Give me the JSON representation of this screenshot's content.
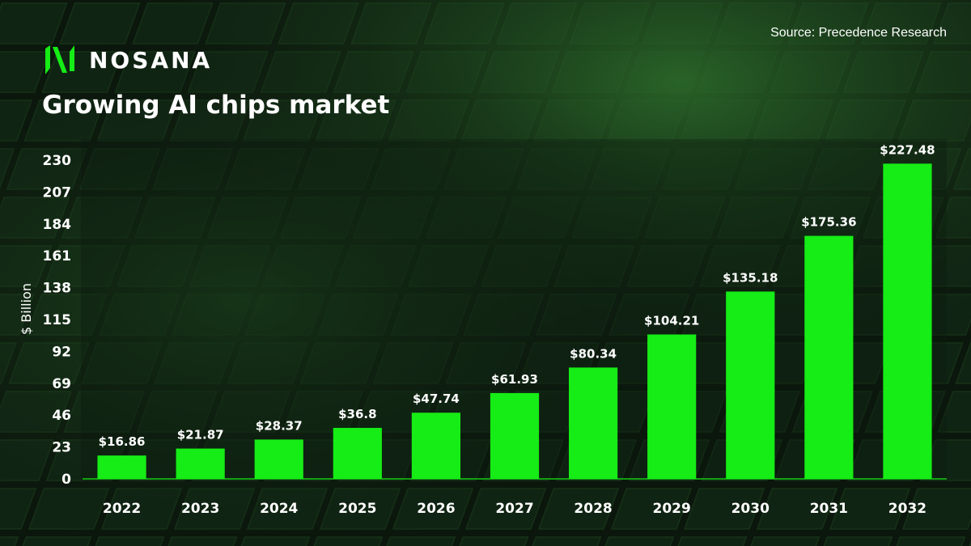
{
  "brand": {
    "name": "NOSANA",
    "logo_icon": "nosana-logo-icon",
    "accent": "#16ec16"
  },
  "header": {
    "title": "Growing AI chips market",
    "source": "Source: Precedence Research"
  },
  "colors": {
    "bar": "#16ec16",
    "axis": "#16ec16",
    "background": "#0d1a0f"
  },
  "chart_data": {
    "type": "bar",
    "title": "Growing AI chips market",
    "xlabel": "",
    "ylabel": "$ Billion",
    "ylim": [
      0,
      230
    ],
    "yticks": [
      "0",
      "23",
      "46",
      "69",
      "92",
      "115",
      "138",
      "161",
      "184",
      "207",
      "230"
    ],
    "categories": [
      "2022",
      "2023",
      "2024",
      "2025",
      "2026",
      "2027",
      "2028",
      "2029",
      "2030",
      "2031",
      "2032"
    ],
    "values": [
      16.86,
      21.87,
      28.37,
      36.8,
      47.74,
      61.93,
      80.34,
      104.21,
      135.18,
      175.36,
      227.48
    ],
    "value_labels": [
      "$16.86",
      "$21.87",
      "$28.37",
      "$36.8",
      "$47.74",
      "$61.93",
      "$80.34",
      "$104.21",
      "$135.18",
      "$175.36",
      "$227.48"
    ],
    "grid": false,
    "legend": "none"
  }
}
